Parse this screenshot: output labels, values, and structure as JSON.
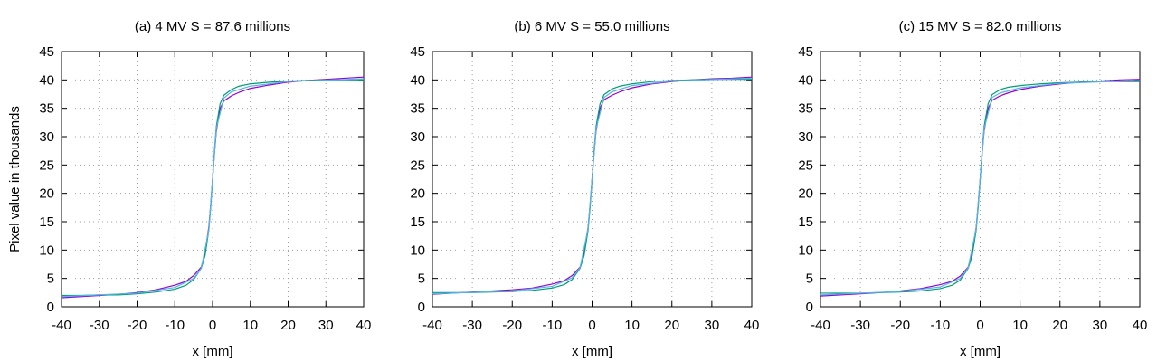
{
  "chart_data": [
    {
      "type": "line",
      "title": "(a) 4 MV S = 87.6 millions",
      "xlabel": "x [mm]",
      "ylabel": "Pixel value in thousands",
      "xlim": [
        -40,
        40
      ],
      "ylim": [
        0,
        45
      ],
      "xticks": [
        -40,
        -30,
        -20,
        -10,
        0,
        10,
        20,
        30,
        40
      ],
      "yticks": [
        0,
        5,
        10,
        15,
        20,
        25,
        30,
        35,
        40,
        45
      ],
      "grid": true,
      "series": [
        {
          "color": "#9400d3",
          "x": [
            -40,
            -35,
            -30,
            -25,
            -20,
            -15,
            -10,
            -7,
            -5,
            -3,
            -2,
            -1,
            -0.5,
            0,
            0.5,
            1,
            2,
            3,
            5,
            7,
            10,
            15,
            20,
            25,
            30,
            35,
            40
          ],
          "y": [
            1.6,
            1.8,
            2.0,
            2.2,
            2.5,
            3.0,
            3.8,
            4.5,
            5.5,
            7.0,
            9.5,
            14.0,
            18.0,
            22.5,
            27.0,
            31.0,
            35.0,
            36.3,
            37.2,
            37.8,
            38.5,
            39.1,
            39.6,
            39.9,
            40.1,
            40.3,
            40.5
          ]
        },
        {
          "color": "#009e73",
          "x": [
            -40,
            -35,
            -30,
            -25,
            -20,
            -15,
            -10,
            -7,
            -5,
            -3,
            -2,
            -1,
            -0.5,
            0,
            0.5,
            1,
            2,
            3,
            5,
            7,
            10,
            15,
            20,
            25,
            30,
            35,
            40
          ],
          "y": [
            2.0,
            2.0,
            2.1,
            2.1,
            2.3,
            2.6,
            3.1,
            3.8,
            4.8,
            6.8,
            9.0,
            13.5,
            17.5,
            22.5,
            27.5,
            31.8,
            35.8,
            37.3,
            38.3,
            38.9,
            39.3,
            39.6,
            39.8,
            39.9,
            40.0,
            40.0,
            40.0
          ]
        },
        {
          "color": "#56b4e9",
          "x": [
            -40,
            -20,
            -10,
            -5,
            -3,
            -1,
            0,
            1,
            3,
            5,
            10,
            20,
            40
          ],
          "y": [
            1.8,
            2.4,
            3.4,
            5.0,
            6.8,
            13.5,
            22.5,
            31.5,
            36.8,
            37.9,
            38.9,
            39.7,
            40.2
          ]
        }
      ]
    },
    {
      "type": "line",
      "title": "(b) 6 MV S = 55.0 millions",
      "xlabel": "x [mm]",
      "ylabel": "",
      "xlim": [
        -40,
        40
      ],
      "ylim": [
        0,
        45
      ],
      "xticks": [
        -40,
        -30,
        -20,
        -10,
        0,
        10,
        20,
        30,
        40
      ],
      "yticks": [
        0,
        5,
        10,
        15,
        20,
        25,
        30,
        35,
        40,
        45
      ],
      "grid": true,
      "series": [
        {
          "color": "#9400d3",
          "x": [
            -40,
            -35,
            -30,
            -25,
            -20,
            -15,
            -10,
            -7,
            -5,
            -3,
            -2,
            -1,
            -0.5,
            0,
            0.5,
            1,
            2,
            3,
            5,
            7,
            10,
            15,
            20,
            25,
            30,
            35,
            40
          ],
          "y": [
            2.2,
            2.4,
            2.6,
            2.8,
            3.0,
            3.3,
            4.0,
            4.6,
            5.5,
            7.0,
            9.5,
            14.0,
            18.0,
            22.5,
            27.0,
            31.0,
            35.0,
            36.5,
            37.3,
            37.9,
            38.6,
            39.3,
            39.7,
            40.0,
            40.2,
            40.3,
            40.5
          ]
        },
        {
          "color": "#009e73",
          "x": [
            -40,
            -35,
            -30,
            -25,
            -20,
            -15,
            -10,
            -7,
            -5,
            -3,
            -2,
            -1,
            -0.5,
            0,
            0.5,
            1,
            2,
            3,
            5,
            7,
            10,
            15,
            20,
            25,
            30,
            35,
            40
          ],
          "y": [
            2.5,
            2.5,
            2.5,
            2.6,
            2.7,
            2.9,
            3.3,
            3.9,
            4.8,
            6.8,
            9.0,
            13.5,
            17.5,
            22.5,
            27.5,
            31.8,
            35.8,
            37.4,
            38.4,
            38.9,
            39.3,
            39.7,
            39.9,
            40.0,
            40.1,
            40.1,
            40.1
          ]
        },
        {
          "color": "#56b4e9",
          "x": [
            -40,
            -20,
            -10,
            -5,
            -3,
            -1,
            0,
            1,
            3,
            5,
            10,
            20,
            40
          ],
          "y": [
            2.3,
            2.8,
            3.6,
            5.1,
            6.9,
            13.8,
            22.5,
            31.4,
            36.9,
            37.9,
            39.0,
            39.8,
            40.3
          ]
        }
      ]
    },
    {
      "type": "line",
      "title": "(c) 15 MV S = 82.0 millions",
      "xlabel": "x [mm]",
      "ylabel": "",
      "xlim": [
        -40,
        40
      ],
      "ylim": [
        0,
        45
      ],
      "xticks": [
        -40,
        -30,
        -20,
        -10,
        0,
        10,
        20,
        30,
        40
      ],
      "yticks": [
        0,
        5,
        10,
        15,
        20,
        25,
        30,
        35,
        40,
        45
      ],
      "grid": true,
      "series": [
        {
          "color": "#9400d3",
          "x": [
            -40,
            -35,
            -30,
            -25,
            -20,
            -15,
            -10,
            -7,
            -5,
            -3,
            -2,
            -1,
            -0.5,
            0,
            0.5,
            1,
            2,
            3,
            5,
            7,
            10,
            15,
            20,
            25,
            30,
            35,
            40
          ],
          "y": [
            1.9,
            2.1,
            2.3,
            2.5,
            2.8,
            3.2,
            3.9,
            4.5,
            5.4,
            7.0,
            9.5,
            14.0,
            18.0,
            22.5,
            27.0,
            31.0,
            35.0,
            36.4,
            37.2,
            37.7,
            38.3,
            38.9,
            39.3,
            39.6,
            39.8,
            40.0,
            40.1
          ]
        },
        {
          "color": "#009e73",
          "x": [
            -40,
            -35,
            -30,
            -25,
            -20,
            -15,
            -10,
            -7,
            -5,
            -3,
            -2,
            -1,
            -0.5,
            0,
            0.5,
            1,
            2,
            3,
            5,
            7,
            10,
            15,
            20,
            25,
            30,
            35,
            40
          ],
          "y": [
            2.4,
            2.4,
            2.4,
            2.5,
            2.6,
            2.8,
            3.2,
            3.8,
            4.7,
            6.8,
            9.0,
            13.5,
            17.5,
            22.5,
            27.5,
            31.8,
            35.8,
            37.4,
            38.3,
            38.7,
            39.0,
            39.3,
            39.5,
            39.6,
            39.7,
            39.7,
            39.7
          ]
        },
        {
          "color": "#56b4e9",
          "x": [
            -40,
            -20,
            -10,
            -5,
            -3,
            -1,
            0,
            1,
            3,
            5,
            10,
            20,
            40
          ],
          "y": [
            2.1,
            2.7,
            3.5,
            5.0,
            6.9,
            13.8,
            22.5,
            31.4,
            36.9,
            37.7,
            38.6,
            39.4,
            39.9
          ]
        }
      ]
    }
  ]
}
